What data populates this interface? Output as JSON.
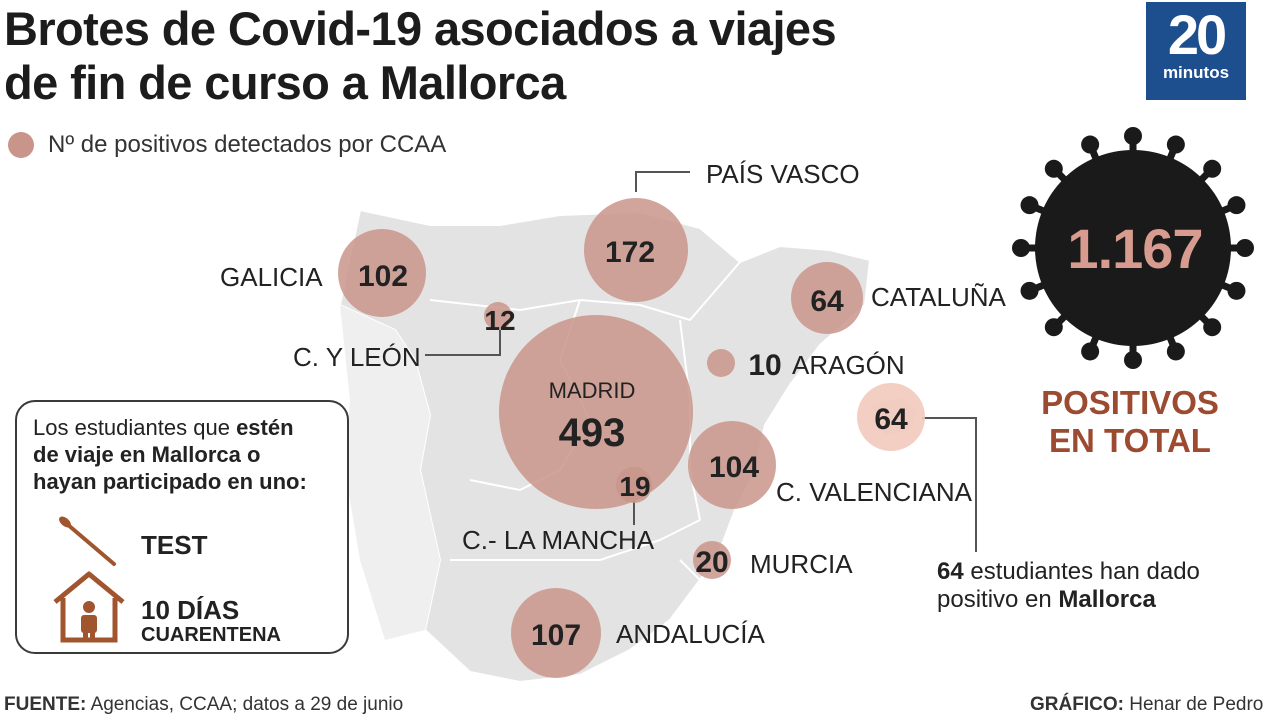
{
  "title": {
    "line1": "Brotes de Covid-19 asociados a viajes",
    "line2": "de fin de curso a Mallorca"
  },
  "legend": {
    "label": "Nº de positivos detectados por CCAA"
  },
  "logo": {
    "number": "20",
    "word": "minutos"
  },
  "colors": {
    "bubble": "#c9958a",
    "bubble_light": "#f2c9bd",
    "virus": "#1a1a1a",
    "total_number": "#d79c8f",
    "total_label": "#9c4a30",
    "logo_bg": "#1d4f8f"
  },
  "chart_data": {
    "type": "bubble-map",
    "regions": [
      {
        "name": "MADRID",
        "value": 493,
        "display": "493"
      },
      {
        "name": "PAÍS VASCO",
        "value": 172,
        "display": "172"
      },
      {
        "name": "ANDALUCÍA",
        "value": 107,
        "display": "107"
      },
      {
        "name": "C. VALENCIANA",
        "value": 104,
        "display": "104"
      },
      {
        "name": "GALICIA",
        "value": 102,
        "display": "102"
      },
      {
        "name": "CATALUÑA",
        "value": 64,
        "display": "64"
      },
      {
        "name": "",
        "value": 64,
        "display": "64"
      },
      {
        "name": "MURCIA",
        "value": 20,
        "display": "20"
      },
      {
        "name": "C.- LA MANCHA",
        "value": 19,
        "display": "19"
      },
      {
        "name": "C. Y LEÓN",
        "value": 12,
        "display": "12"
      },
      {
        "name": "ARAGÓN",
        "value": 10,
        "display": "10"
      }
    ]
  },
  "total": {
    "value": "1.167",
    "label_line1": "POSITIVOS",
    "label_line2": "EN TOTAL"
  },
  "mallorca_note": {
    "count": "64",
    "text1": "estudiantes han dado",
    "text2": "positivo en",
    "place": "Mallorca"
  },
  "info_box": {
    "msg_plain1": "Los estudiantes que",
    "msg_bold1": "estén",
    "msg_bold2": "de viaje en Mallorca o",
    "msg_bold3": "hayan participado en uno:",
    "test_label": "TEST",
    "days_label": "10 DÍAS",
    "quarantine_label": "CUARENTENA",
    "test_icon": "swab-icon",
    "home_icon": "house-person-icon"
  },
  "footer": {
    "source_label": "FUENTE:",
    "source_text": "Agencias, CCAA; datos a 29 de junio",
    "credit_label": "GRÁFICO:",
    "credit_text": "Henar de Pedro"
  }
}
